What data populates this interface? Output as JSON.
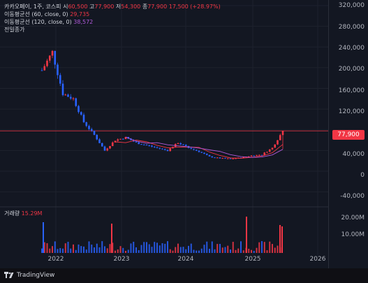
{
  "legend": {
    "symbol": "카카오페이, 1주, 코스피",
    "open_label": "시",
    "open_value": "60,500",
    "high_label": "고",
    "high_value": "77,900",
    "low_label": "저",
    "low_value": "54,300",
    "close_label": "종",
    "close_value": "77,900",
    "change": "17,500 (+28.97%)",
    "ma60_label": "이동평균선 (60, close, 0)",
    "ma60_value": "29,735",
    "ma120_label": "이동평균선 (120, close, 0)",
    "ma120_value": "38,572",
    "prev_close_label": "전일종가"
  },
  "price_axis": [
    "320,000",
    "280,000",
    "240,000",
    "200,000",
    "160,000",
    "120,000",
    "40,000",
    "0",
    "-40,000"
  ],
  "last_price_tag": "77,900",
  "volume": {
    "label": "거래량",
    "value": "15.29M",
    "axis": [
      "20.00M",
      "10.00M"
    ]
  },
  "time_axis": [
    "2022",
    "2023",
    "2024",
    "2025",
    "2026"
  ],
  "brand": "TradingView",
  "colors": {
    "up": "#f23645",
    "down": "#2962ff",
    "ma60": "#f23645",
    "ma120": "#b05ad9",
    "background": "#131722"
  },
  "chart_data": {
    "type": "line",
    "title": "카카오페이, 1주, 코스피",
    "x": [
      "2021-11",
      "2021-12",
      "2022-02",
      "2022-04",
      "2022-06",
      "2022-08",
      "2022-10",
      "2022-12",
      "2023-02",
      "2023-04",
      "2023-06",
      "2023-08",
      "2023-10",
      "2023-12",
      "2024-02",
      "2024-04",
      "2024-06",
      "2024-08",
      "2024-10",
      "2024-12",
      "2025-02",
      "2025-04",
      "2025-05",
      "2025-06"
    ],
    "series": [
      {
        "values": [
          195000,
          230000,
          150000,
          140000,
          95000,
          70000,
          40000,
          60000,
          65000,
          55000,
          50000,
          45000,
          40000,
          55000,
          45000,
          38000,
          28000,
          25000,
          24000,
          26000,
          30000,
          32000,
          45000,
          77900
        ]
      }
    ],
    "ylim": [
      -50000,
      320000
    ]
  }
}
